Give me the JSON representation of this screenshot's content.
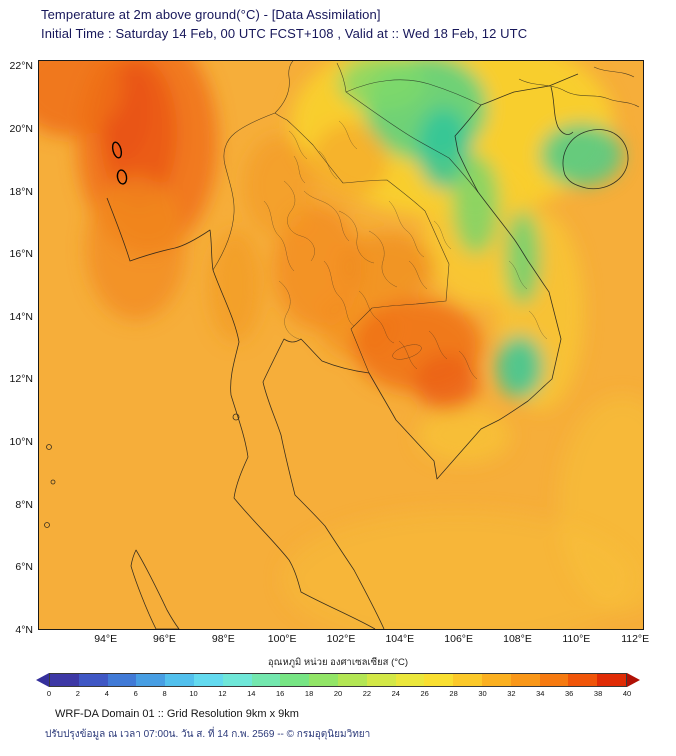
{
  "header": {
    "title": "Temperature at 2m above ground(°C) - [Data Assimilation]",
    "subtitle": "Initial Time : Saturday 14 Feb, 00 UTC FCST+108 , Valid at :: Wed 18 Feb, 12 UTC"
  },
  "map": {
    "lat_ticks": [
      {
        "label": "22°N",
        "value": 22
      },
      {
        "label": "20°N",
        "value": 20
      },
      {
        "label": "18°N",
        "value": 18
      },
      {
        "label": "16°N",
        "value": 16
      },
      {
        "label": "14°N",
        "value": 14
      },
      {
        "label": "12°N",
        "value": 12
      },
      {
        "label": "10°N",
        "value": 10
      },
      {
        "label": "8°N",
        "value": 8
      },
      {
        "label": "6°N",
        "value": 6
      },
      {
        "label": "4°N",
        "value": 4
      }
    ],
    "lon_ticks": [
      {
        "label": "94°E",
        "value": 94
      },
      {
        "label": "96°E",
        "value": 96
      },
      {
        "label": "98°E",
        "value": 98
      },
      {
        "label": "100°E",
        "value": 100
      },
      {
        "label": "102°E",
        "value": 102
      },
      {
        "label": "104°E",
        "value": 104
      },
      {
        "label": "106°E",
        "value": 106
      },
      {
        "label": "108°E",
        "value": 108
      },
      {
        "label": "110°E",
        "value": 110
      },
      {
        "label": "112°E",
        "value": 112
      }
    ]
  },
  "colorbar": {
    "label": "อุณหภูมิ หน่วย องศาเซลเซียส (°C)",
    "ticks": [
      "0",
      "2",
      "4",
      "6",
      "8",
      "10",
      "12",
      "14",
      "16",
      "18",
      "20",
      "22",
      "24",
      "26",
      "28",
      "30",
      "32",
      "34",
      "36",
      "38",
      "40"
    ],
    "segment_colors": [
      "#3d38a5",
      "#3f57c4",
      "#417ad6",
      "#479ee3",
      "#52c0ed",
      "#63daef",
      "#6fe7d8",
      "#73e7ae",
      "#77e584",
      "#92e567",
      "#b3e654",
      "#d3e847",
      "#ebe73c",
      "#f9df31",
      "#fcc929",
      "#fbb020",
      "#f99718",
      "#f67a10",
      "#f05509",
      "#e02c05"
    ],
    "arrow_left_color": "#35309b",
    "arrow_right_color": "#b01005"
  },
  "footer": {
    "line1": "WRF-DA Domain 01 :: Grid Resolution 9km x 9km",
    "line2": "ปรับปรุงข้อมูล ณ เวลา 07:00น. วัน ส. ที่ 14 ก.พ. 2569 -- © กรมอุตุนิยมวิทยา"
  },
  "chart_data": {
    "type": "heatmap",
    "title": "Temperature at 2m above ground (°C), WRF-DA Domain 01",
    "units": "°C",
    "geo_bounds": {
      "lon_min": 91.7,
      "lon_max": 112.3,
      "lat_min": 4.0,
      "lat_max": 22.2
    },
    "base_temp_c": 31,
    "base_color": "#f6ae3a",
    "colorbar_range": [
      0,
      40
    ],
    "contours": [
      {
        "value": 0,
        "note": "two small 0°C contour rings over northern Myanmar highlands near 94.4°E, 18.5–19.3°N"
      }
    ],
    "regions": [
      {
        "name": "ne-yellow-wash",
        "lon": 105.8,
        "lat": 20.2,
        "rx_deg": 5.5,
        "ry_deg": 3.0,
        "temp_c": 27,
        "color": "#f8d22e",
        "opacity": 0.9
      },
      {
        "name": "viet-coast-yellow",
        "lon": 108.8,
        "lat": 14.2,
        "rx_deg": 1.5,
        "ry_deg": 3.2,
        "temp_c": 27,
        "color": "#f8cb32",
        "opacity": 0.7
      },
      {
        "name": "laos-viet-yellow",
        "lon": 106.8,
        "lat": 16.6,
        "rx_deg": 2.0,
        "ry_deg": 2.2,
        "temp_c": 27,
        "color": "#f8cd32",
        "opacity": 0.75
      },
      {
        "name": "mekong-delta-yellow",
        "lon": 106.2,
        "lat": 10.2,
        "rx_deg": 1.6,
        "ry_deg": 0.9,
        "temp_c": 28,
        "color": "#f7c636",
        "opacity": 0.65
      },
      {
        "name": "south-sea-yellow",
        "lon": 106.0,
        "lat": 5.6,
        "rx_deg": 6.0,
        "ry_deg": 2.2,
        "temp_c": 29,
        "color": "#f7bd3a",
        "opacity": 0.5
      },
      {
        "name": "se-corner-yellow",
        "lon": 111.6,
        "lat": 8.0,
        "rx_deg": 2.2,
        "ry_deg": 3.5,
        "temp_c": 28,
        "color": "#f7c338",
        "opacity": 0.5
      },
      {
        "name": "nvietnam-green",
        "lon": 104.9,
        "lat": 20.7,
        "rx_deg": 2.1,
        "ry_deg": 1.7,
        "temp_c": 24,
        "color": "#5fd07f",
        "opacity": 0.9
      },
      {
        "name": "nvietnam-green-west-arm",
        "lon": 103.4,
        "lat": 21.5,
        "rx_deg": 1.5,
        "ry_deg": 0.9,
        "temp_c": 25,
        "color": "#7eda6a",
        "opacity": 0.8
      },
      {
        "name": "nvietnam-teal-core",
        "lon": 105.5,
        "lat": 19.4,
        "rx_deg": 0.9,
        "ry_deg": 1.3,
        "temp_c": 21,
        "color": "#2fc79b",
        "opacity": 0.85
      },
      {
        "name": "annamite-green-arm",
        "lon": 106.6,
        "lat": 17.6,
        "rx_deg": 0.8,
        "ry_deg": 1.6,
        "temp_c": 24,
        "color": "#6bd573",
        "opacity": 0.75
      },
      {
        "name": "hainan-green",
        "lon": 110.2,
        "lat": 19.2,
        "rx_deg": 1.4,
        "ry_deg": 1.0,
        "temp_c": 23,
        "color": "#4ccb8b",
        "opacity": 0.85
      },
      {
        "name": "viet-coast-green-streak",
        "lon": 108.2,
        "lat": 15.9,
        "rx_deg": 0.6,
        "ry_deg": 1.5,
        "temp_c": 24,
        "color": "#58d07e",
        "opacity": 0.75
      },
      {
        "name": "viet-highlands-teal-spot",
        "lon": 108.1,
        "lat": 12.4,
        "rx_deg": 0.8,
        "ry_deg": 1.0,
        "temp_c": 21,
        "color": "#35c89c",
        "opacity": 0.85
      },
      {
        "name": "myanmar-hot",
        "lon": 95.4,
        "lat": 19.6,
        "rx_deg": 2.4,
        "ry_deg": 3.6,
        "temp_c": 35,
        "color": "#f0761a",
        "opacity": 0.95
      },
      {
        "name": "myanmar-hot-core",
        "lon": 95.1,
        "lat": 19.9,
        "rx_deg": 1.3,
        "ry_deg": 2.4,
        "temp_c": 36,
        "color": "#ea5a14",
        "opacity": 0.9
      },
      {
        "name": "myanmar-red-streak",
        "lon": 94.6,
        "lat": 20.6,
        "rx_deg": 0.9,
        "ry_deg": 1.6,
        "temp_c": 37,
        "color": "#e85212",
        "opacity": 0.8
      },
      {
        "name": "top-left-corner-hot",
        "lon": 92.7,
        "lat": 21.4,
        "rx_deg": 1.9,
        "ry_deg": 1.6,
        "temp_c": 35,
        "color": "#ef6e18",
        "opacity": 0.85
      },
      {
        "name": "myanmar-coast-south-orange",
        "lon": 95.0,
        "lat": 16.2,
        "rx_deg": 1.7,
        "ry_deg": 2.3,
        "temp_c": 33,
        "color": "#f28a20",
        "opacity": 0.75
      },
      {
        "name": "west-thai-orange",
        "lon": 98.4,
        "lat": 15.0,
        "rx_deg": 0.9,
        "ry_deg": 1.8,
        "temp_c": 32,
        "color": "#f29a24",
        "opacity": 0.7
      },
      {
        "name": "central-thai-orange",
        "lon": 101.2,
        "lat": 15.6,
        "rx_deg": 1.5,
        "ry_deg": 2.0,
        "temp_c": 33,
        "color": "#f28c1e",
        "opacity": 0.8
      },
      {
        "name": "north-thai-orange",
        "lon": 99.9,
        "lat": 18.2,
        "rx_deg": 1.2,
        "ry_deg": 1.6,
        "temp_c": 32,
        "color": "#f39a26",
        "opacity": 0.65
      },
      {
        "name": "laos-mid-orange",
        "lon": 102.3,
        "lat": 19.0,
        "rx_deg": 1.3,
        "ry_deg": 1.2,
        "temp_c": 31,
        "color": "#f4a028",
        "opacity": 0.6
      },
      {
        "name": "isaan-orange",
        "lon": 103.6,
        "lat": 15.6,
        "rx_deg": 1.6,
        "ry_deg": 1.1,
        "temp_c": 33,
        "color": "#f08a1c",
        "opacity": 0.7
      },
      {
        "name": "east-thai-orange",
        "lon": 102.6,
        "lat": 13.7,
        "rx_deg": 1.3,
        "ry_deg": 1.0,
        "temp_c": 33,
        "color": "#f28c1e",
        "opacity": 0.7
      },
      {
        "name": "cambodia-hot",
        "lon": 104.6,
        "lat": 13.1,
        "rx_deg": 2.2,
        "ry_deg": 1.5,
        "temp_c": 34,
        "color": "#ef7317",
        "opacity": 0.9
      },
      {
        "name": "cambodia-hot-core",
        "lon": 105.6,
        "lat": 11.9,
        "rx_deg": 1.1,
        "ry_deg": 0.9,
        "temp_c": 35,
        "color": "#ec6216",
        "opacity": 0.85
      }
    ]
  }
}
